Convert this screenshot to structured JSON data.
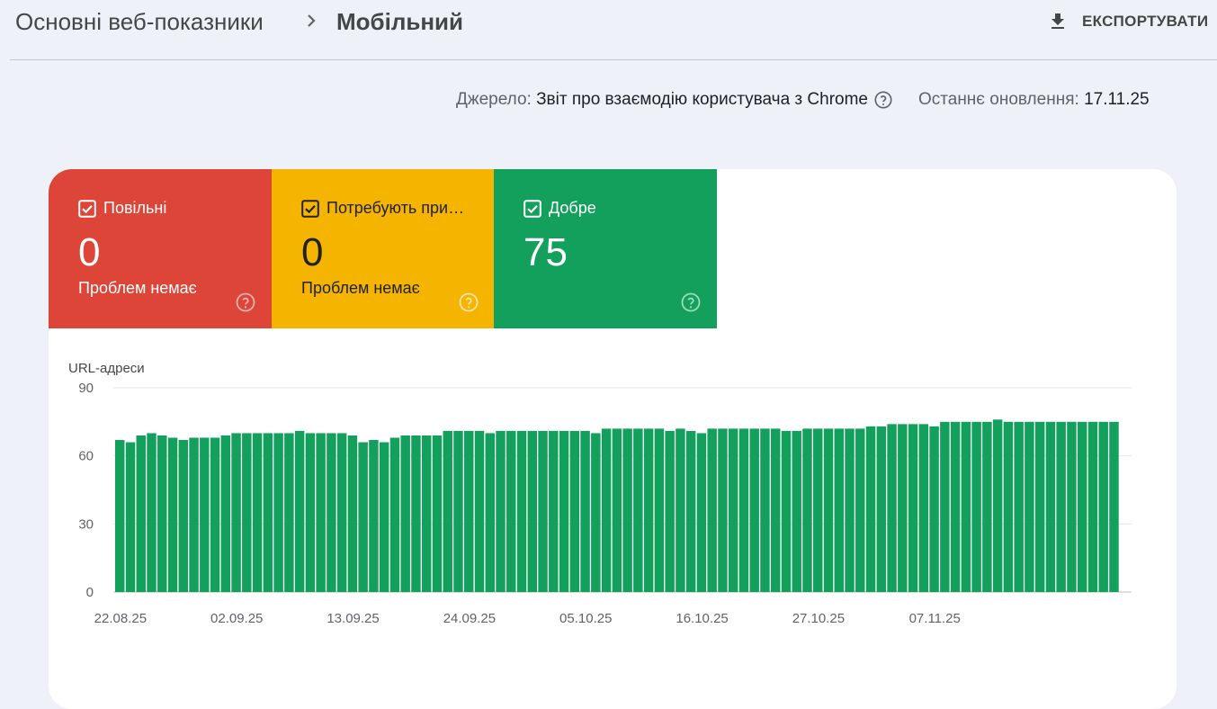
{
  "breadcrumb": {
    "parent": "Основні веб-показники",
    "current": "Мобільний"
  },
  "toolbar": {
    "export_label": "ЕКСПОРТУВАТИ"
  },
  "source": {
    "label": "Джерело:",
    "value": "Звіт про взаємодію користувача з Chrome",
    "updated_label": "Останнє оновлення:",
    "updated_value": "17.11.25"
  },
  "tiles": [
    {
      "label": "Повільні",
      "value": "0",
      "subtitle": "Проблем немає",
      "checked": true,
      "color": "#dc4537"
    },
    {
      "label": "Потребують покращення",
      "label_shown": "Потребують при…",
      "value": "0",
      "subtitle": "Проблем немає",
      "checked": true,
      "color": "#f4b400"
    },
    {
      "label": "Добре",
      "value": "75",
      "subtitle": "",
      "checked": true,
      "color": "#12a05c"
    }
  ],
  "icons": {
    "export": "download-icon",
    "help": "help-circle-icon",
    "check": "checkbox-checked-icon",
    "separator": "chevron-right-icon"
  },
  "chart_data": {
    "type": "bar",
    "ylabel": "URL-адреси",
    "ylim": [
      0,
      90
    ],
    "yticks": [
      0,
      30,
      60,
      90
    ],
    "xtick_labels": [
      "22.08.25",
      "02.09.25",
      "13.09.25",
      "24.09.25",
      "05.10.25",
      "16.10.25",
      "27.10.25",
      "07.11.25"
    ],
    "grid": true,
    "series": [
      {
        "color": "#12a05c",
        "values": [
          67,
          66,
          69,
          70,
          69,
          68,
          67,
          68,
          68,
          68,
          69,
          70,
          70,
          70,
          70,
          70,
          70,
          71,
          70,
          70,
          70,
          70,
          69,
          66,
          67,
          66,
          68,
          69,
          69,
          69,
          69,
          71,
          71,
          71,
          71,
          70,
          71,
          71,
          71,
          71,
          71,
          71,
          71,
          71,
          71,
          70,
          72,
          72,
          72,
          72,
          72,
          72,
          71,
          72,
          71,
          70,
          72,
          72,
          72,
          72,
          72,
          72,
          72,
          71,
          71,
          72,
          72,
          72,
          72,
          72,
          72,
          73,
          73,
          74,
          74,
          74,
          74,
          73,
          75,
          75,
          75,
          75,
          75,
          76,
          75,
          75,
          75,
          75,
          75,
          75,
          75,
          75,
          75,
          75,
          75
        ]
      }
    ]
  }
}
